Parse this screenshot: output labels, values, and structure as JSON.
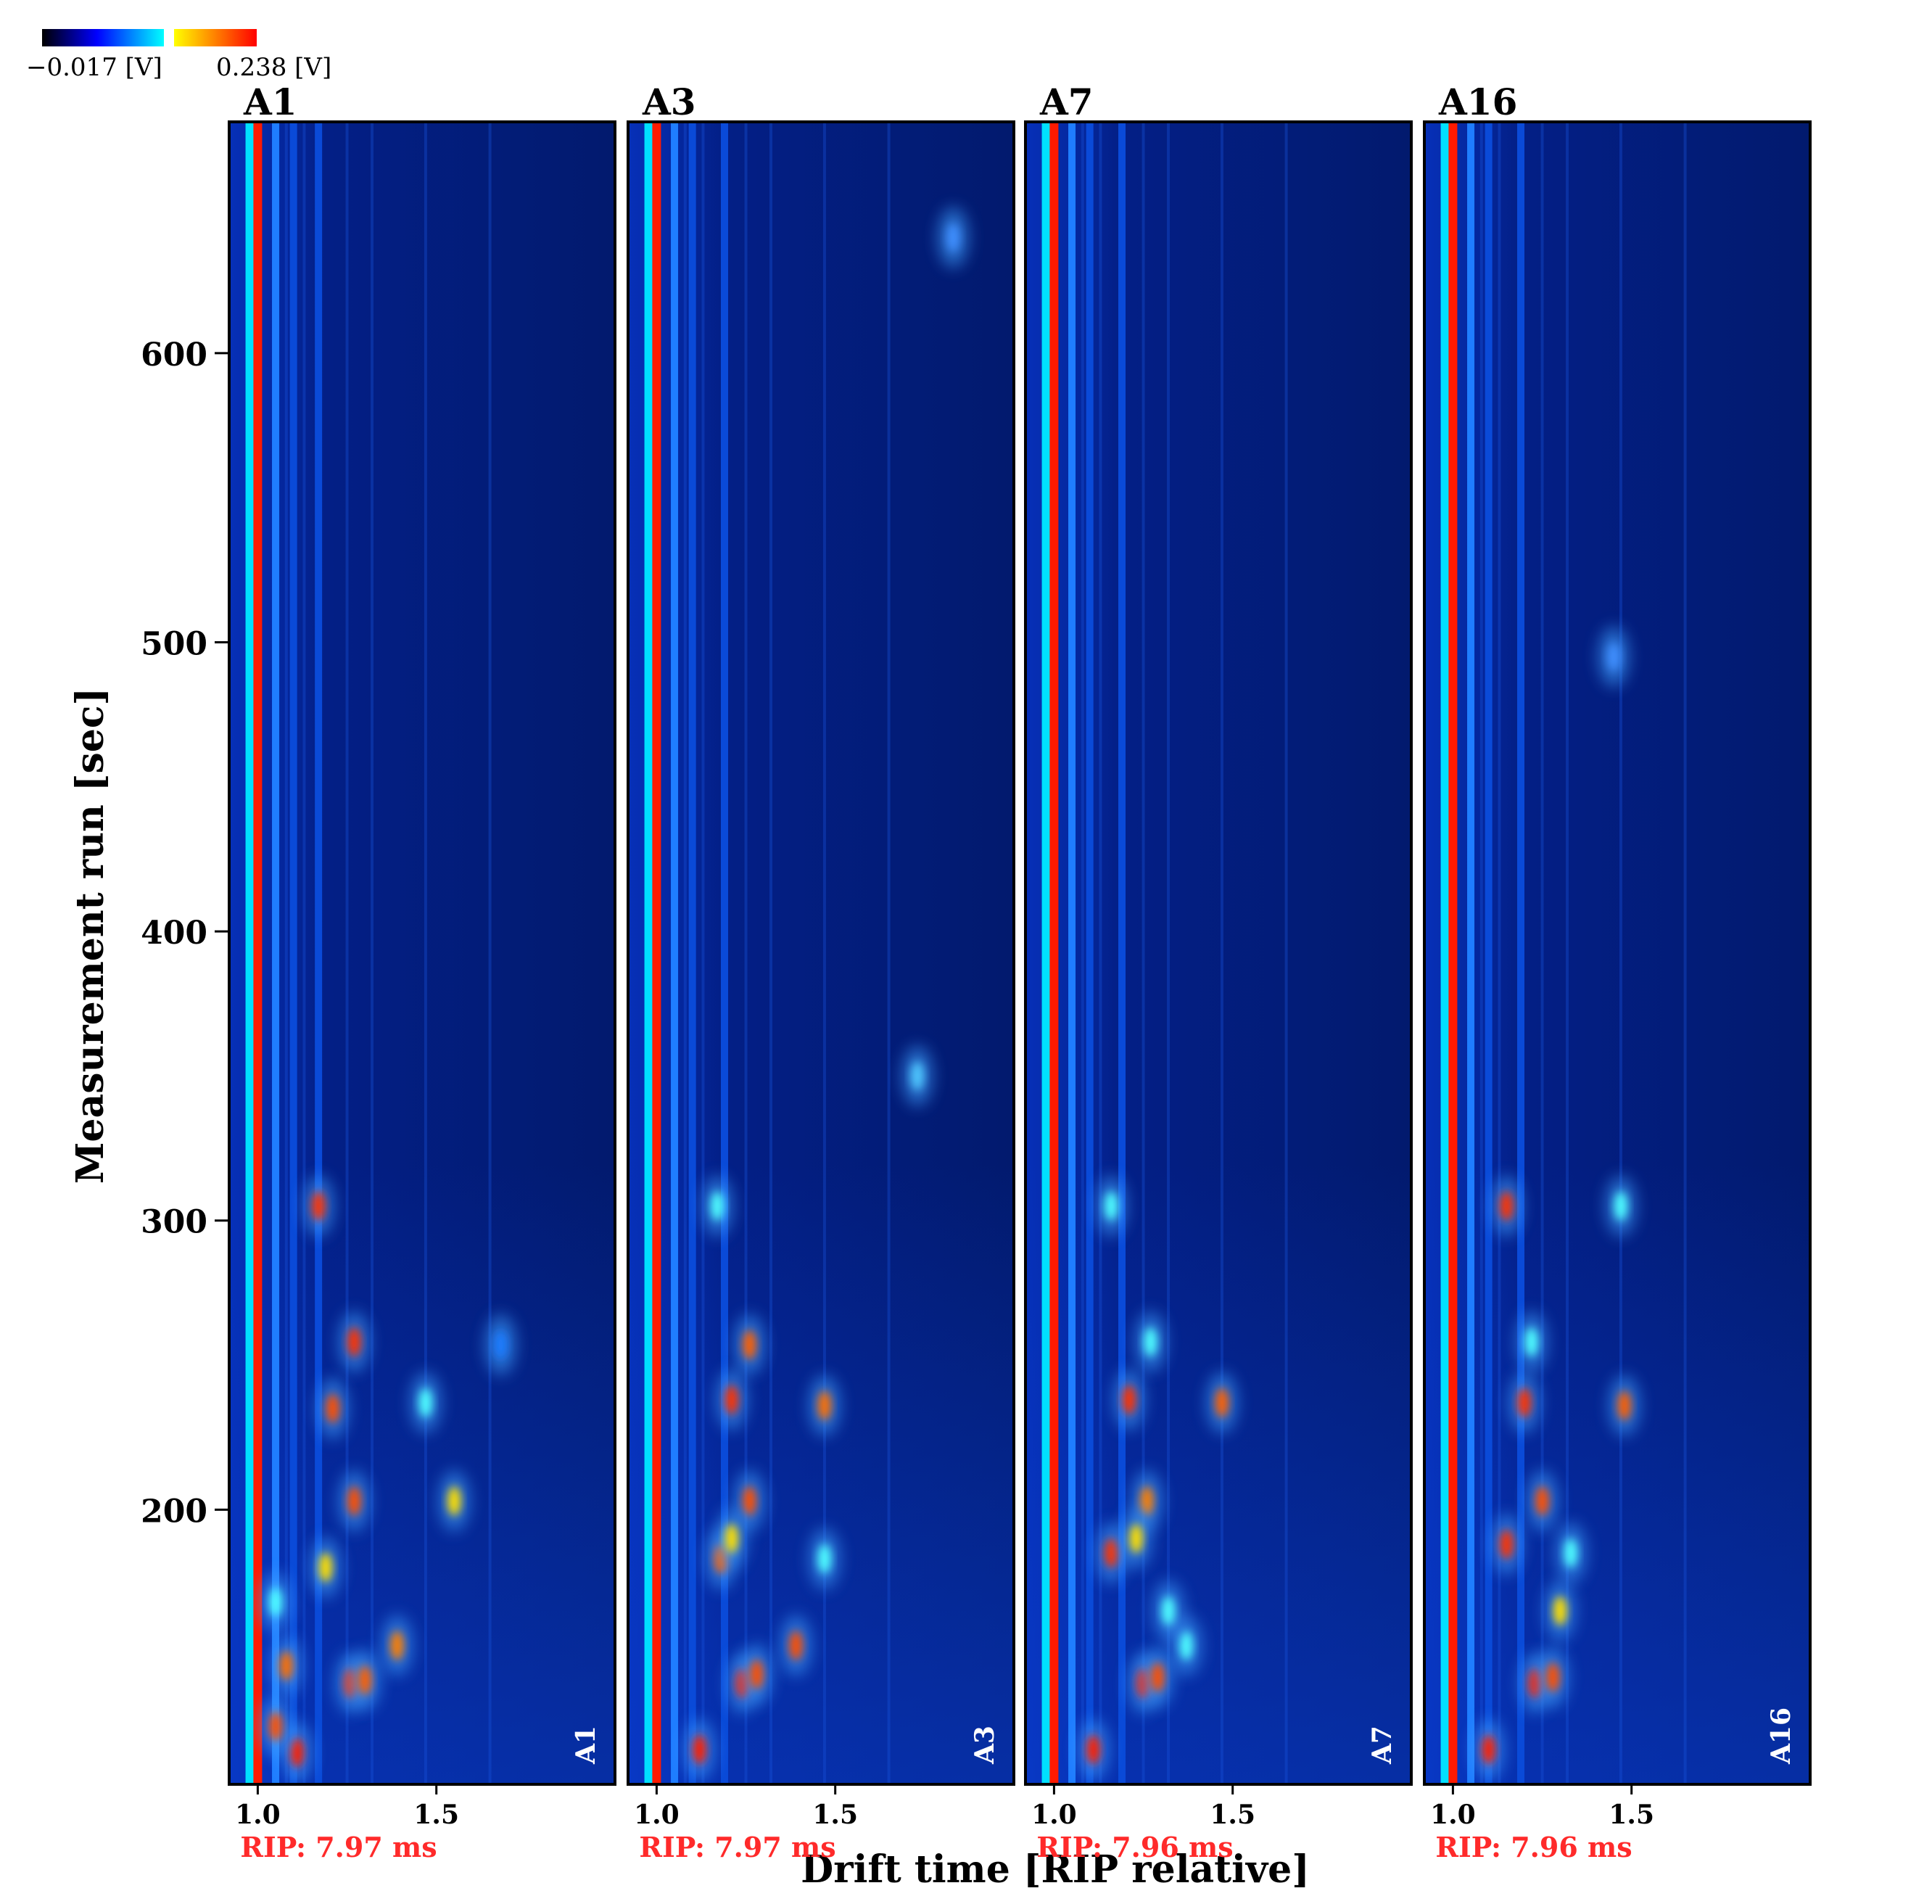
{
  "colorbar": {
    "min_label": "−0.017 [V]",
    "max_label": "0.238 [V]",
    "colors": [
      "#000000",
      "#0000ff",
      "#00ffff",
      "#ffff00",
      "#ff0000"
    ]
  },
  "chart_data": {
    "type": "heatmap",
    "title": "",
    "xlabel": "Drift time [RIP relative]",
    "ylabel": "Measurement run [sec]",
    "xlim": [
      0.92,
      2.0
    ],
    "ylim": [
      105,
      680
    ],
    "x_ticks": [
      1.0,
      1.5
    ],
    "x_tick_labels": [
      "1.0",
      "1.5"
    ],
    "y_ticks": [
      200,
      300,
      400,
      500,
      600
    ],
    "y_tick_labels": [
      "200",
      "300",
      "400",
      "500",
      "600"
    ],
    "background_color": "#021a6e",
    "panels": [
      {
        "name": "A1",
        "corner_label": "A1",
        "rip": "RIP: 7.97 ms",
        "streaks": [
          {
            "x": 0.98,
            "color": "#00e0ff"
          },
          {
            "x": 1.0,
            "color": "#ff1a00"
          },
          {
            "x": 1.05,
            "color": "#1f7dff"
          },
          {
            "x": 1.1,
            "color": "#0a4ad8"
          },
          {
            "x": 1.17,
            "color": "#0a4ad8"
          }
        ],
        "spots": [
          {
            "x": 1.17,
            "y": 305,
            "color": "#ff3000"
          },
          {
            "x": 1.27,
            "y": 258,
            "color": "#ff3000"
          },
          {
            "x": 1.21,
            "y": 235,
            "color": "#ff5000"
          },
          {
            "x": 1.27,
            "y": 203,
            "color": "#ff5000"
          },
          {
            "x": 1.55,
            "y": 203,
            "color": "#ffe000"
          },
          {
            "x": 1.47,
            "y": 237,
            "color": "#50ffff"
          },
          {
            "x": 1.68,
            "y": 257,
            "color": "#1f7dff"
          },
          {
            "x": 1.39,
            "y": 153,
            "color": "#ff8000"
          },
          {
            "x": 1.26,
            "y": 140,
            "color": "#ff3000"
          },
          {
            "x": 1.3,
            "y": 141,
            "color": "#ff6000"
          },
          {
            "x": 1.11,
            "y": 116,
            "color": "#ff2000"
          },
          {
            "x": 1.05,
            "y": 125,
            "color": "#ff5000"
          },
          {
            "x": 1.08,
            "y": 146,
            "color": "#ff7000"
          },
          {
            "x": 1.19,
            "y": 180,
            "color": "#ffe000"
          },
          {
            "x": 1.05,
            "y": 168,
            "color": "#50ffff"
          }
        ]
      },
      {
        "name": "A3",
        "corner_label": "A3",
        "rip": "RIP: 7.97 ms",
        "streaks": [
          {
            "x": 0.98,
            "color": "#00e0ff"
          },
          {
            "x": 1.0,
            "color": "#ff1a00"
          },
          {
            "x": 1.05,
            "color": "#1f7dff"
          },
          {
            "x": 1.1,
            "color": "#0a4ad8"
          },
          {
            "x": 1.19,
            "color": "#0a4ad8"
          }
        ],
        "spots": [
          {
            "x": 1.17,
            "y": 305,
            "color": "#50ffff"
          },
          {
            "x": 1.26,
            "y": 257,
            "color": "#ff6000"
          },
          {
            "x": 1.21,
            "y": 238,
            "color": "#ff3000"
          },
          {
            "x": 1.26,
            "y": 203,
            "color": "#ff5000"
          },
          {
            "x": 1.47,
            "y": 236,
            "color": "#ff7000"
          },
          {
            "x": 1.47,
            "y": 183,
            "color": "#50ffff"
          },
          {
            "x": 1.39,
            "y": 153,
            "color": "#ff5000"
          },
          {
            "x": 1.24,
            "y": 140,
            "color": "#ff2000"
          },
          {
            "x": 1.28,
            "y": 143,
            "color": "#ff5000"
          },
          {
            "x": 1.12,
            "y": 117,
            "color": "#ff2000"
          },
          {
            "x": 1.18,
            "y": 183,
            "color": "#ff6000"
          },
          {
            "x": 1.21,
            "y": 190,
            "color": "#ffe000"
          },
          {
            "x": 1.73,
            "y": 350,
            "color": "#50c8ff"
          },
          {
            "x": 1.83,
            "y": 640,
            "color": "#3f8fff"
          }
        ]
      },
      {
        "name": "A7",
        "corner_label": "A7",
        "rip": "RIP: 7.96 ms",
        "streaks": [
          {
            "x": 0.98,
            "color": "#00e0ff"
          },
          {
            "x": 1.0,
            "color": "#ff1a00"
          },
          {
            "x": 1.05,
            "color": "#1f7dff"
          },
          {
            "x": 1.1,
            "color": "#0a4ad8"
          },
          {
            "x": 1.19,
            "color": "#0a4ad8"
          }
        ],
        "spots": [
          {
            "x": 1.16,
            "y": 305,
            "color": "#50ffff"
          },
          {
            "x": 1.27,
            "y": 258,
            "color": "#50ffff"
          },
          {
            "x": 1.21,
            "y": 238,
            "color": "#ff3000"
          },
          {
            "x": 1.26,
            "y": 203,
            "color": "#ff8000"
          },
          {
            "x": 1.47,
            "y": 237,
            "color": "#ff6000"
          },
          {
            "x": 1.37,
            "y": 153,
            "color": "#50ffff"
          },
          {
            "x": 1.25,
            "y": 140,
            "color": "#ff2000"
          },
          {
            "x": 1.29,
            "y": 142,
            "color": "#ff5000"
          },
          {
            "x": 1.11,
            "y": 117,
            "color": "#ff2000"
          },
          {
            "x": 1.16,
            "y": 185,
            "color": "#ff3000"
          },
          {
            "x": 1.23,
            "y": 190,
            "color": "#ffe000"
          },
          {
            "x": 1.32,
            "y": 165,
            "color": "#50ffff"
          }
        ]
      },
      {
        "name": "A16",
        "corner_label": "A16",
        "rip": "RIP: 7.96 ms",
        "streaks": [
          {
            "x": 0.98,
            "color": "#00e0ff"
          },
          {
            "x": 1.0,
            "color": "#ff1a00"
          },
          {
            "x": 1.05,
            "color": "#1f7dff"
          },
          {
            "x": 1.1,
            "color": "#0a4ad8"
          },
          {
            "x": 1.19,
            "color": "#0a4ad8"
          }
        ],
        "spots": [
          {
            "x": 1.15,
            "y": 305,
            "color": "#ff3000"
          },
          {
            "x": 1.22,
            "y": 258,
            "color": "#50ffff"
          },
          {
            "x": 1.2,
            "y": 237,
            "color": "#ff3000"
          },
          {
            "x": 1.25,
            "y": 203,
            "color": "#ff5000"
          },
          {
            "x": 1.48,
            "y": 236,
            "color": "#ff6000"
          },
          {
            "x": 1.47,
            "y": 305,
            "color": "#50ffff"
          },
          {
            "x": 1.3,
            "y": 165,
            "color": "#ffe000"
          },
          {
            "x": 1.23,
            "y": 140,
            "color": "#ff2000"
          },
          {
            "x": 1.28,
            "y": 142,
            "color": "#ff5000"
          },
          {
            "x": 1.1,
            "y": 117,
            "color": "#ff2000"
          },
          {
            "x": 1.15,
            "y": 188,
            "color": "#ff3000"
          },
          {
            "x": 1.33,
            "y": 185,
            "color": "#50ffff"
          },
          {
            "x": 1.45,
            "y": 495,
            "color": "#3f8fff"
          }
        ]
      }
    ]
  }
}
